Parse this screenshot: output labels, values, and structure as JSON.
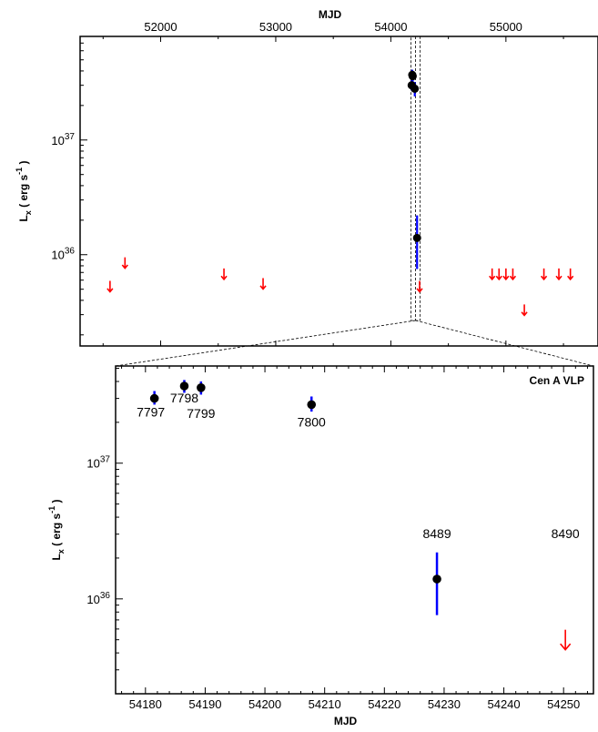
{
  "chart_data": [
    {
      "type": "scatter",
      "title": "",
      "xlabel": "MJD",
      "ylabel": "L_x ( erg  s^-1 )",
      "x_axis_position": "top",
      "yscale": "log",
      "xlim": [
        51300,
        55800
      ],
      "ylim": [
        1.6e+35,
        8e+37
      ],
      "x_ticks": [
        52000,
        53000,
        54000,
        55000
      ],
      "x_tick_labels": [
        "52000",
        "53000",
        "54000",
        "55000"
      ],
      "y_ticks": [
        1e+36,
        1e+37
      ],
      "y_tick_labels": [
        "10^36",
        "10^37"
      ],
      "detections": [
        {
          "x": 54181,
          "y": 3e+37,
          "err": [
            2.7e+37,
            3.3e+37
          ]
        },
        {
          "x": 54186,
          "y": 3.7e+37,
          "err": [
            3.3e+37,
            4.1e+37
          ]
        },
        {
          "x": 54190,
          "y": 3.6e+37,
          "err": [
            3.2e+37,
            4e+37
          ]
        },
        {
          "x": 54208,
          "y": 2.8e+37,
          "err": [
            2.4e+37,
            3.2e+37
          ]
        },
        {
          "x": 54228,
          "y": 1.4e+36,
          "err": [
            7.5e+35,
            2.2e+36
          ]
        }
      ],
      "upper_limits": [
        {
          "x": 51560,
          "y": 5.3e+35
        },
        {
          "x": 51690,
          "y": 8.5e+35
        },
        {
          "x": 52550,
          "y": 6.8e+35
        },
        {
          "x": 52890,
          "y": 5.6e+35
        },
        {
          "x": 54250,
          "y": 5.3e+35
        },
        {
          "x": 54880,
          "y": 6.8e+35
        },
        {
          "x": 54940,
          "y": 6.8e+35
        },
        {
          "x": 55000,
          "y": 6.8e+35
        },
        {
          "x": 55060,
          "y": 6.8e+35
        },
        {
          "x": 55160,
          "y": 3.3e+35
        },
        {
          "x": 55330,
          "y": 6.8e+35
        },
        {
          "x": 55460,
          "y": 6.8e+35
        },
        {
          "x": 55560,
          "y": 6.8e+35
        }
      ],
      "highlight_range": [
        54175,
        54255
      ],
      "colors": {
        "detection": "#000000",
        "errorbar": "#0000ff",
        "upper_limit": "#ff0000"
      }
    },
    {
      "type": "scatter",
      "title": "Cen A VLP",
      "xlabel": "MJD",
      "ylabel": "L_x ( erg  s^-1 )",
      "yscale": "log",
      "xlim": [
        54175,
        54255
      ],
      "ylim": [
        2e+35,
        5.2e+37
      ],
      "x_ticks": [
        54180,
        54190,
        54200,
        54210,
        54220,
        54230,
        54240,
        54250
      ],
      "x_tick_labels": [
        "54180",
        "54190",
        "54200",
        "54210",
        "54220",
        "54230",
        "54240",
        "54250"
      ],
      "y_ticks": [
        1e+36,
        1e+37
      ],
      "y_tick_labels": [
        "10^36",
        "10^37"
      ],
      "detections": [
        {
          "x": 54181.5,
          "y": 3e+37,
          "err": [
            2.7e+37,
            3.4e+37
          ],
          "label": "7797"
        },
        {
          "x": 54186.5,
          "y": 3.7e+37,
          "err": [
            3.3e+37,
            4.1e+37
          ],
          "label": "7798"
        },
        {
          "x": 54189.3,
          "y": 3.6e+37,
          "err": [
            3.2e+37,
            4e+37
          ],
          "label": "7799"
        },
        {
          "x": 54207.8,
          "y": 2.7e+37,
          "err": [
            2.4e+37,
            3.1e+37
          ],
          "label": "7800"
        },
        {
          "x": 54228.8,
          "y": 1.4e+36,
          "err": [
            7.6e+35,
            2.2e+36
          ],
          "label": "8489"
        }
      ],
      "upper_limits": [
        {
          "x": 54250.3,
          "y": 5e+35,
          "label": "8490"
        }
      ],
      "colors": {
        "detection": "#000000",
        "errorbar": "#0000ff",
        "upper_limit": "#ff0000"
      }
    }
  ]
}
